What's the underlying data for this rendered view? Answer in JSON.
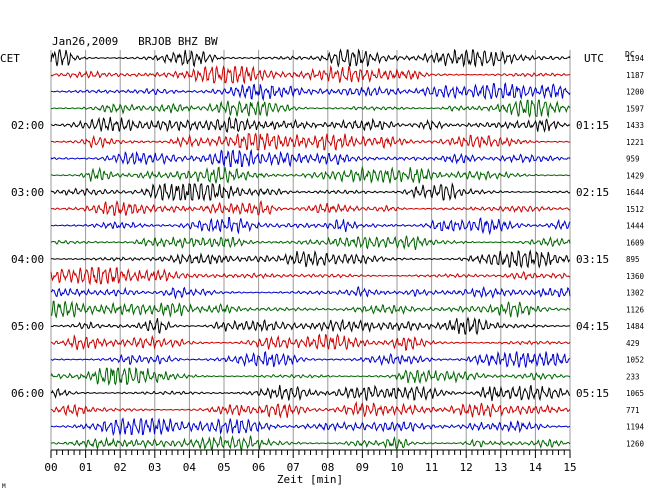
{
  "chart_data": {
    "type": "line",
    "title": "Jan26,2009   BRJOB BHZ BW",
    "left_axis_label": "CET",
    "right_axis_label": "UTC",
    "right_column_label": "DC",
    "xlabel": "Zeit [min]",
    "xlim": [
      0,
      15
    ],
    "x_ticks": [
      "00",
      "01",
      "02",
      "03",
      "04",
      "05",
      "06",
      "07",
      "08",
      "09",
      "10",
      "11",
      "12",
      "13",
      "14",
      "15"
    ],
    "left_time_labels": [
      {
        "trace": 4,
        "label": "02:00"
      },
      {
        "trace": 8,
        "label": "03:00"
      },
      {
        "trace": 12,
        "label": "04:00"
      },
      {
        "trace": 16,
        "label": "05:00"
      },
      {
        "trace": 20,
        "label": "06:00"
      }
    ],
    "right_time_labels": [
      {
        "trace": 4,
        "label": "01:15"
      },
      {
        "trace": 8,
        "label": "02:15"
      },
      {
        "trace": 12,
        "label": "03:15"
      },
      {
        "trace": 16,
        "label": "04:15"
      },
      {
        "trace": 20,
        "label": "05:15"
      }
    ],
    "trace_colors": [
      "#000000",
      "#cc0000",
      "#0000cc",
      "#006600"
    ],
    "dc_offsets": [
      "1194",
      "1187",
      "1200",
      "1597",
      "1433",
      "1221",
      "959",
      "1429",
      "1644",
      "1512",
      "1444",
      "1609",
      "895",
      "1360",
      "1302",
      "1126",
      "1484",
      "429",
      "1052",
      "233",
      "1065",
      "771",
      "1194",
      "1260"
    ],
    "grid": true
  },
  "footer_mark": "M"
}
